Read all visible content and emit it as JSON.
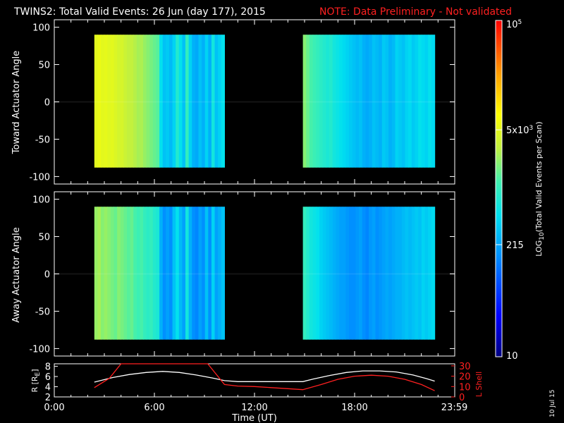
{
  "header": {
    "title": "TWINS2: Total Valid Events: 26 Jun (day 177), 2015",
    "note": "NOTE: Data Preliminary - Not validated"
  },
  "date_stamp": "10 Jul 15",
  "chart_data": [
    {
      "type": "heatmap",
      "name": "Toward actuator spectrogram",
      "ylabel": "Toward Actuator Angle",
      "ylim": [
        -110,
        110
      ],
      "y_ticks": [
        100,
        50,
        0,
        -50,
        -100
      ],
      "xlim_hours": [
        0,
        24
      ],
      "y_data_range": [
        -88,
        90
      ],
      "segments": [
        {
          "start_h": 2.4,
          "end_h": 10.2,
          "column_log_levels": [
            3.7,
            3.75,
            3.7,
            3.72,
            3.68,
            3.7,
            3.65,
            3.6,
            3.62,
            3.55,
            3.5,
            3.5,
            3.45,
            3.4,
            3.42,
            3.35,
            3.3,
            3.25,
            3.2,
            3.15,
            2.7,
            2.5,
            2.55,
            2.45,
            2.6,
            2.9,
            2.7,
            2.5,
            3.0,
            2.6,
            2.4,
            2.35,
            2.5,
            2.4,
            2.6,
            2.4,
            2.8,
            2.5,
            2.6,
            2.7
          ]
        },
        {
          "start_h": 14.9,
          "end_h": 22.8,
          "column_log_levels": [
            3.3,
            3.2,
            3.1,
            3.05,
            3.0,
            2.95,
            2.9,
            2.85,
            2.9,
            2.8,
            2.75,
            2.7,
            2.65,
            2.6,
            2.55,
            2.5,
            2.45,
            2.5,
            2.4,
            2.35,
            2.4,
            2.5,
            2.45,
            2.4,
            2.55,
            2.5,
            2.4,
            2.45,
            2.6,
            2.55,
            2.5,
            2.6,
            2.65,
            2.55,
            2.6,
            2.7,
            2.65,
            2.6,
            2.7,
            2.65
          ]
        }
      ]
    },
    {
      "type": "heatmap",
      "name": "Away actuator spectrogram",
      "ylabel": "Away Actuator Angle",
      "ylim": [
        -110,
        110
      ],
      "y_ticks": [
        100,
        50,
        0,
        -50,
        -100
      ],
      "xlim_hours": [
        0,
        24
      ],
      "y_data_range": [
        -88,
        90
      ],
      "segments": [
        {
          "start_h": 2.4,
          "end_h": 10.2,
          "column_log_levels": [
            3.35,
            3.4,
            3.3,
            3.35,
            3.3,
            3.25,
            3.2,
            3.3,
            3.25,
            3.2,
            3.15,
            3.2,
            3.1,
            3.05,
            3.1,
            3.0,
            2.95,
            3.0,
            2.9,
            2.85,
            2.4,
            2.2,
            2.3,
            2.2,
            2.5,
            2.7,
            2.45,
            2.3,
            2.8,
            2.4,
            2.2,
            2.15,
            2.3,
            2.2,
            2.5,
            2.2,
            2.6,
            2.3,
            2.4,
            2.5
          ]
        },
        {
          "start_h": 14.9,
          "end_h": 22.8,
          "column_log_levels": [
            3.0,
            2.9,
            2.8,
            2.75,
            2.7,
            2.6,
            2.55,
            2.5,
            2.45,
            2.4,
            2.35,
            2.3,
            2.3,
            2.25,
            2.2,
            2.2,
            2.25,
            2.3,
            2.2,
            2.15,
            2.25,
            2.3,
            2.2,
            2.25,
            2.3,
            2.35,
            2.3,
            2.35,
            2.4,
            2.4,
            2.45,
            2.5,
            2.45,
            2.5,
            2.55,
            2.5,
            2.6,
            2.55,
            2.6,
            2.65
          ]
        }
      ]
    },
    {
      "type": "line",
      "name": "Orbit panel",
      "xlabel": "Time (UT)",
      "x_ticks": [
        "0:00",
        "6:00",
        "12:00",
        "18:00",
        "23:59"
      ],
      "x_tick_hours": [
        0,
        6,
        12,
        18,
        23.98
      ],
      "left_axis": {
        "label": "R [R",
        "label_subscript": "E",
        "label_tail": "]",
        "ylim": [
          2,
          8.5
        ],
        "ticks": [
          8,
          6,
          4,
          2
        ]
      },
      "right_axis": {
        "label": "L Shell",
        "ylim": [
          0,
          32
        ],
        "ticks": [
          30,
          20,
          10,
          0
        ],
        "color": "#ff2020"
      },
      "series": [
        {
          "name": "R",
          "axis": "left",
          "color": "#ffffff",
          "x": [
            2.4,
            3.5,
            4.5,
            5.5,
            6.5,
            7.5,
            8.5,
            9.5,
            10.2,
            11,
            12,
            13,
            14,
            14.9,
            15.5,
            16.5,
            17.5,
            18.5,
            19.5,
            20.5,
            21.5,
            22.3,
            22.8
          ],
          "y": [
            4.9,
            5.8,
            6.4,
            6.8,
            7.0,
            6.8,
            6.3,
            5.7,
            5.2,
            5.0,
            5.0,
            5.0,
            5.0,
            5.0,
            5.5,
            6.2,
            6.8,
            7.1,
            7.1,
            6.9,
            6.3,
            5.6,
            5.1
          ]
        },
        {
          "name": "L Shell",
          "axis": "right",
          "color": "#ff2020",
          "x": [
            2.4,
            3.3,
            4.0,
            9.2,
            10.2,
            11,
            12,
            13,
            14,
            14.9,
            16,
            17,
            18,
            19,
            20,
            21,
            22,
            22.8
          ],
          "y": [
            9,
            18,
            33,
            33,
            12,
            10.5,
            10,
            9,
            8,
            7,
            12,
            17,
            20,
            21,
            20,
            17,
            12,
            6
          ]
        }
      ]
    }
  ],
  "colorbar": {
    "label": "LOG",
    "label_sub": "10",
    "label_tail": "(Total Valid Events per Scan)",
    "min": 10,
    "max_label_base": "10",
    "max_label_exp": "5",
    "ticks": [
      {
        "label": "10",
        "log": 1.0
      },
      {
        "label": "215",
        "log": 2.333
      },
      {
        "base": "5x10",
        "exp": "3",
        "log": 3.699
      },
      {
        "base": "10",
        "exp": "5",
        "log": 5.0
      }
    ]
  }
}
